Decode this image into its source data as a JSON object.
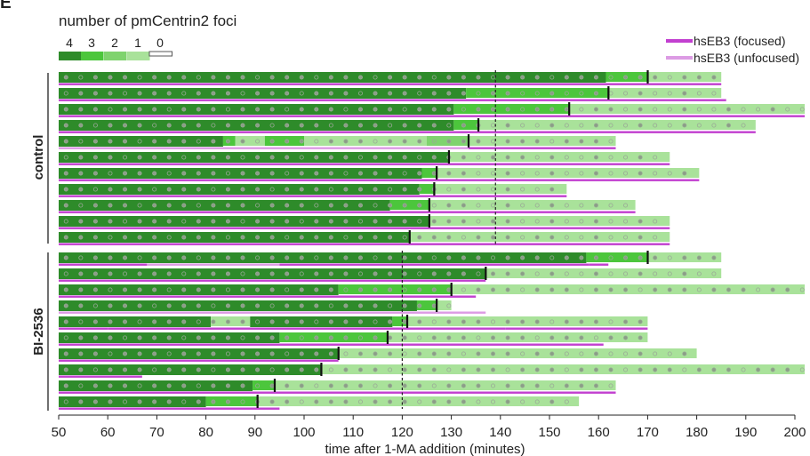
{
  "chart_data": {
    "type": "bar",
    "title": "number of pmCentrin2 foci",
    "panel_letter": "E",
    "xlabel": "time after 1-MA addition (minutes)",
    "xlim": [
      50,
      200
    ],
    "xticks": [
      50,
      60,
      70,
      80,
      90,
      100,
      110,
      120,
      130,
      140,
      150,
      160,
      170,
      180,
      190,
      200
    ],
    "foci_legend": {
      "labels": [
        "4",
        "3",
        "2",
        "1",
        "0"
      ],
      "colors": [
        "#2e8b2a",
        "#4cc63c",
        "#7fd36e",
        "#a9e29a",
        "#ffffff"
      ]
    },
    "eb3_legend": [
      {
        "name": "hsEB3 (focused)",
        "color": "#c23fd0"
      },
      {
        "name": "hsEB3 (unfocused)",
        "color": "#dc9be4"
      }
    ],
    "groups": [
      {
        "label": "control",
        "dashed_x": 139,
        "cells": [
          {
            "segments": [
              [
                50,
                161.5,
                4
              ],
              [
                161.5,
                170,
                3
              ],
              [
                170,
                185,
                1
              ]
            ],
            "mark": 170,
            "eb3": [
              [
                50,
                185,
                "f"
              ]
            ],
            "open_after": 200
          },
          {
            "segments": [
              [
                50,
                133,
                4
              ],
              [
                133,
                162,
                3
              ],
              [
                162,
                185,
                1
              ]
            ],
            "mark": 162,
            "eb3": [
              [
                50,
                186,
                "f"
              ]
            ],
            "open_after": 140
          },
          {
            "segments": [
              [
                50,
                130.5,
                4
              ],
              [
                130.5,
                154,
                3
              ],
              [
                154,
                202,
                1
              ]
            ],
            "mark": 154,
            "eb3": [
              [
                50,
                202,
                "f"
              ]
            ],
            "open_after": 165
          },
          {
            "segments": [
              [
                50,
                130.5,
                4
              ],
              [
                130.5,
                135.5,
                3
              ],
              [
                135.5,
                192,
                1
              ]
            ],
            "mark": 135.5,
            "eb3": [
              [
                50,
                192,
                "f"
              ]
            ],
            "open_after": 138
          },
          {
            "segments": [
              [
                50,
                83.5,
                4
              ],
              [
                83.5,
                86,
                3
              ],
              [
                86,
                92,
                1
              ],
              [
                92,
                100,
                3
              ],
              [
                100,
                125,
                1
              ],
              [
                125,
                133.5,
                2
              ],
              [
                133.5,
                163.5,
                1
              ]
            ],
            "mark": 133.5,
            "eb3": [
              [
                50,
                133.5,
                "u"
              ],
              [
                133.5,
                163.5,
                "f"
              ]
            ],
            "open_after": 220
          },
          {
            "segments": [
              [
                50,
                129.5,
                4
              ],
              [
                129.5,
                174.5,
                1
              ]
            ],
            "mark": 129.5,
            "eb3": [
              [
                50,
                174.5,
                "f"
              ]
            ],
            "open_after": 150
          },
          {
            "segments": [
              [
                50,
                124,
                4
              ],
              [
                124,
                127,
                3
              ],
              [
                127,
                180.5,
                1
              ]
            ],
            "mark": 127,
            "eb3": [
              [
                50,
                180.5,
                "f"
              ]
            ],
            "open_after": 130
          },
          {
            "segments": [
              [
                50,
                123.5,
                4
              ],
              [
                123.5,
                126.5,
                3
              ],
              [
                126.5,
                153.5,
                1
              ]
            ],
            "mark": 126.5,
            "eb3": [
              [
                50,
                153.5,
                "f"
              ]
            ],
            "open_after": 128
          },
          {
            "segments": [
              [
                50,
                117.5,
                4
              ],
              [
                117.5,
                125.5,
                3
              ],
              [
                125.5,
                167.5,
                1
              ]
            ],
            "mark": 125.5,
            "eb3": [
              [
                50,
                167.5,
                "f"
              ]
            ],
            "open_after": 135
          },
          {
            "segments": [
              [
                50,
                125.5,
                4
              ],
              [
                125.5,
                174.5,
                1
              ]
            ],
            "mark": 125.5,
            "eb3": [
              [
                50,
                174.5,
                "f"
              ]
            ],
            "open_after": 140
          },
          {
            "segments": [
              [
                50,
                121.5,
                4
              ],
              [
                121.5,
                174.5,
                1
              ]
            ],
            "mark": 121.5,
            "eb3": [
              [
                50,
                174.5,
                "f"
              ]
            ],
            "open_after": 150
          }
        ]
      },
      {
        "label": "BI-2536",
        "dashed_x": 120,
        "cells": [
          {
            "segments": [
              [
                50,
                157.5,
                4
              ],
              [
                157.5,
                170,
                3
              ],
              [
                170,
                185,
                1
              ]
            ],
            "mark": 170,
            "eb3": [
              [
                50,
                68,
                "f"
              ],
              [
                68,
                95,
                "u"
              ],
              [
                95,
                158,
                "f"
              ],
              [
                158,
                162,
                "f"
              ]
            ],
            "open_after": 200
          },
          {
            "segments": [
              [
                50,
                137,
                4
              ],
              [
                137,
                185,
                1
              ]
            ],
            "mark": 137,
            "eb3": [
              [
                50,
                137,
                "f"
              ]
            ],
            "open_after": 150
          },
          {
            "segments": [
              [
                50,
                107,
                4
              ],
              [
                107,
                130,
                3
              ],
              [
                130,
                202,
                1
              ]
            ],
            "mark": 130,
            "eb3": [
              [
                50,
                135,
                "f"
              ]
            ],
            "open_after": 200
          },
          {
            "segments": [
              [
                50,
                123,
                4
              ],
              [
                123,
                127,
                3
              ],
              [
                127,
                130,
                1
              ]
            ],
            "mark": 127,
            "eb3": [
              [
                50,
                120,
                "u"
              ],
              [
                120,
                137,
                "u"
              ]
            ],
            "open_after": 135
          },
          {
            "segments": [
              [
                50,
                81,
                4
              ],
              [
                81,
                89,
                1
              ],
              [
                89,
                118,
                4
              ],
              [
                118,
                121,
                3
              ],
              [
                121,
                170,
                1
              ]
            ],
            "mark": 121,
            "eb3": [
              [
                50,
                60,
                "f"
              ],
              [
                60,
                141,
                "f"
              ],
              [
                141,
                170,
                "f"
              ]
            ],
            "open_after": 200
          },
          {
            "segments": [
              [
                50,
                95,
                4
              ],
              [
                95,
                117,
                3
              ],
              [
                117,
                170,
                1
              ]
            ],
            "mark": 117,
            "eb3": [
              [
                50,
                161,
                "f"
              ]
            ],
            "open_after": 200
          },
          {
            "segments": [
              [
                50,
                107,
                4
              ],
              [
                107,
                180,
                1
              ]
            ],
            "mark": 107,
            "eb3": [
              [
                50,
                107,
                "f"
              ]
            ],
            "open_after": 150
          },
          {
            "segments": [
              [
                50,
                103.5,
                4
              ],
              [
                103.5,
                202,
                1
              ]
            ],
            "mark": 103.5,
            "eb3": [
              [
                50,
                67,
                "f"
              ]
            ],
            "open_after": 200
          },
          {
            "segments": [
              [
                50,
                89.5,
                4
              ],
              [
                89.5,
                94,
                3
              ],
              [
                94,
                163.5,
                1
              ]
            ],
            "mark": 94,
            "eb3": [
              [
                50,
                163.5,
                "f"
              ]
            ],
            "open_after": 200
          },
          {
            "segments": [
              [
                50,
                80,
                4
              ],
              [
                80,
                90.5,
                3
              ],
              [
                90.5,
                156,
                1
              ]
            ],
            "mark": 90.5,
            "eb3": [
              [
                50,
                95,
                "f"
              ]
            ],
            "open_after": 135
          }
        ]
      }
    ]
  }
}
